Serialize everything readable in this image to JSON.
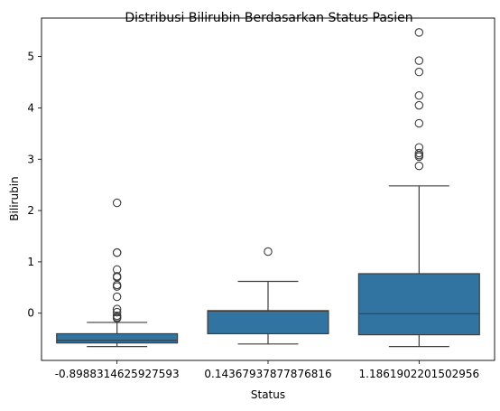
{
  "chart_data": {
    "type": "box",
    "title": "Distribusi Bilirubin Berdasarkan Status Pasien",
    "xlabel": "Status",
    "ylabel": "Bilirubin",
    "categories": [
      "-0.8988314625927593",
      "0.14367937877876816",
      "1.1861902201502956"
    ],
    "ylim": [
      -0.92,
      5.75
    ],
    "yticks": [
      0,
      1,
      2,
      3,
      4,
      5
    ],
    "box_color": "#3274a1",
    "line_color": "#3d3d3d",
    "boxes": [
      {
        "category": "-0.8988314625927593",
        "whisker_low": -0.65,
        "q1": -0.58,
        "median": -0.53,
        "q3": -0.4,
        "whisker_high": -0.18,
        "outliers": [
          2.15,
          1.18,
          1.18,
          0.85,
          0.72,
          0.7,
          0.55,
          0.52,
          0.32,
          0.08,
          0.02,
          -0.05,
          -0.08,
          -0.1
        ]
      },
      {
        "category": "0.14367937877876816",
        "whisker_low": -0.6,
        "q1": -0.4,
        "median": 0.04,
        "q3": 0.05,
        "whisker_high": 0.62,
        "outliers": [
          1.2
        ]
      },
      {
        "category": "1.1861902201502956",
        "whisker_low": -0.65,
        "q1": -0.42,
        "median": -0.01,
        "q3": 0.77,
        "whisker_high": 2.48,
        "outliers": [
          5.47,
          4.92,
          4.7,
          4.24,
          4.05,
          3.7,
          3.23,
          3.12,
          3.08,
          3.05,
          2.87
        ]
      }
    ]
  }
}
